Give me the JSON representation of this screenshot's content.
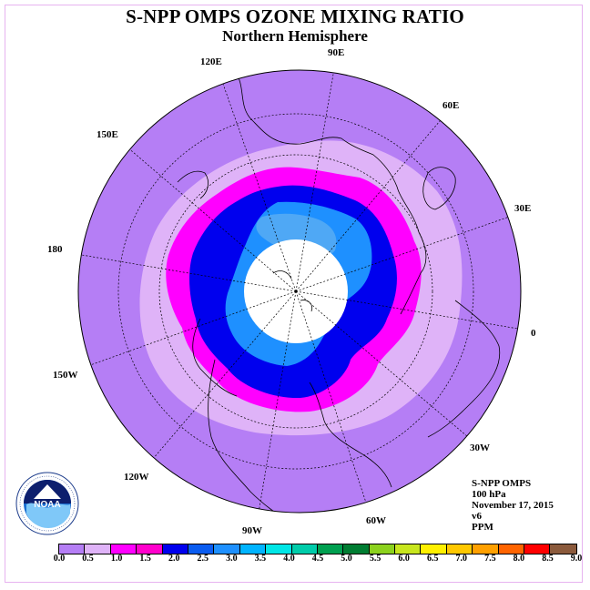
{
  "title": "S-NPP OMPS OZONE MIXING RATIO",
  "subtitle": "Northern Hemisphere",
  "longitude_labels": {
    "lon_90e": "90E",
    "lon_60e": "60E",
    "lon_30e": "30E",
    "lon_0": "0",
    "lon_30w": "30W",
    "lon_60w": "60W",
    "lon_90w": "90W",
    "lon_120w": "120W",
    "lon_150w": "150W",
    "lon_180": "180",
    "lon_150e": "150E",
    "lon_120e": "120E"
  },
  "info": {
    "instrument": "S-NPP OMPS",
    "level": "100 hPa",
    "date": "November 17, 2015",
    "version": "v6",
    "units": "PPM"
  },
  "logo": {
    "text": "NOAA",
    "icon": "noaa-logo-icon"
  },
  "colorbar": {
    "colors": [
      "#b57ef5",
      "#dfb3f8",
      "#ff00ff",
      "#ff00cc",
      "#0000ee",
      "#0a5cf0",
      "#1e90ff",
      "#00b4ff",
      "#00e6e6",
      "#00ccaa",
      "#00a050",
      "#007d32",
      "#8cd21e",
      "#c8e61e",
      "#fff000",
      "#ffc800",
      "#ffa000",
      "#ff6400",
      "#ff0000",
      "#8b5a3c"
    ],
    "ticks": [
      "0.0",
      "0.5",
      "1.0",
      "1.5",
      "2.0",
      "2.5",
      "3.0",
      "3.5",
      "4.0",
      "4.5",
      "5.0",
      "5.5",
      "6.0",
      "6.5",
      "7.0",
      "7.5",
      "8.0",
      "8.5",
      "9.0"
    ]
  },
  "map_colors": {
    "outer": "#b57ef5",
    "light": "#dfb3f8",
    "magenta": "#ff00ff",
    "blue": "#0000ee",
    "mid_blue": "#1e90ff",
    "light_blue": "#4fa8f5",
    "pole": "#ffffff"
  }
}
